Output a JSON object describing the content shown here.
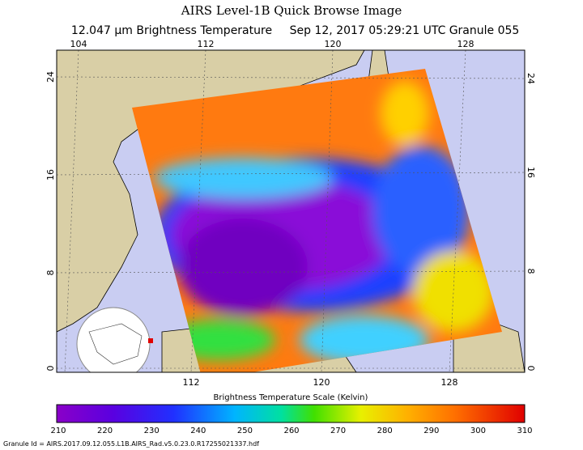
{
  "header": {
    "title": "AIRS Level-1B Quick Browse Image",
    "subtitle": [
      "12.047 μm Brightness Temperature",
      "Sep 12, 2017 05:29:21 UTC",
      "Granule 055"
    ]
  },
  "map": {
    "top_labels": [
      "104",
      "112",
      "120",
      "128"
    ],
    "bottom_labels": [
      "112",
      "120",
      "128"
    ],
    "left_labels": [
      "24",
      "16",
      "8",
      "0"
    ],
    "right_labels": [
      "24",
      "16",
      "8",
      "0"
    ]
  },
  "colorbar": {
    "title": "Brightness Temperature Scale (Kelvin)",
    "ticks": [
      "210",
      "220",
      "230",
      "240",
      "250",
      "260",
      "270",
      "280",
      "290",
      "300",
      "310"
    ]
  },
  "footer": "Granule Id = AIRS.2017.09.12.055.L1B.AIRS_Rad.v5.0.23.0.R17255021337.hdf"
}
